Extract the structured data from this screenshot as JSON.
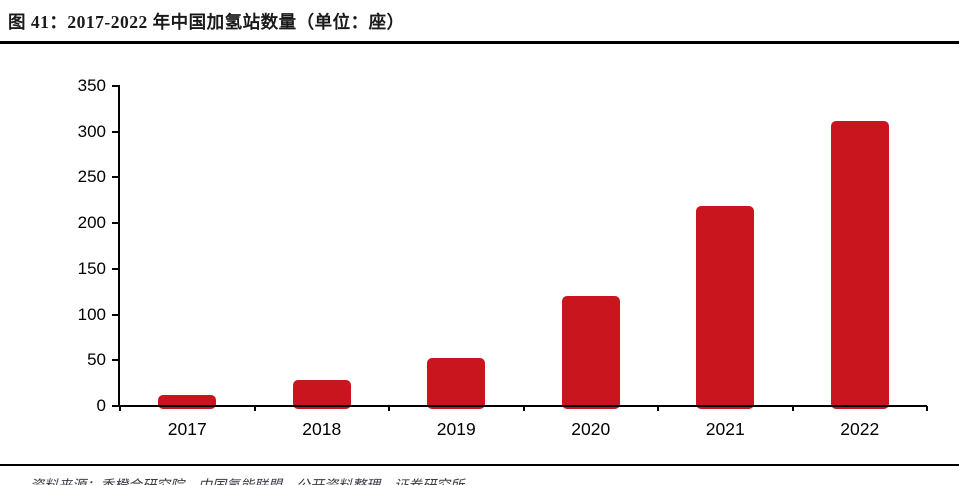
{
  "figure": {
    "title": "图 41：2017-2022 年中国加氢站数量（单位：座）"
  },
  "chart_data": {
    "type": "bar",
    "title": "2017-2022 年中国加氢站数量",
    "unit_label": "单位：座",
    "categories": [
      "2017",
      "2018",
      "2019",
      "2020",
      "2021",
      "2022"
    ],
    "values": [
      12,
      28,
      52,
      120,
      219,
      312
    ],
    "xlabel": "",
    "ylabel": "",
    "ylim": [
      0,
      350
    ],
    "yticks": [
      0,
      50,
      100,
      150,
      200,
      250,
      300,
      350
    ],
    "grid": false,
    "legend_position": "none",
    "bar_color": "#C9161E",
    "axis_color": "#000000"
  },
  "footer": {
    "source_text": "资料来源：香橙会研究院，中国氢能联盟，公开资料整理，证券研究所"
  },
  "colors": {
    "bar_red": "#C9161E",
    "rule_black": "#000000",
    "title_text": "#1a1a1a"
  }
}
